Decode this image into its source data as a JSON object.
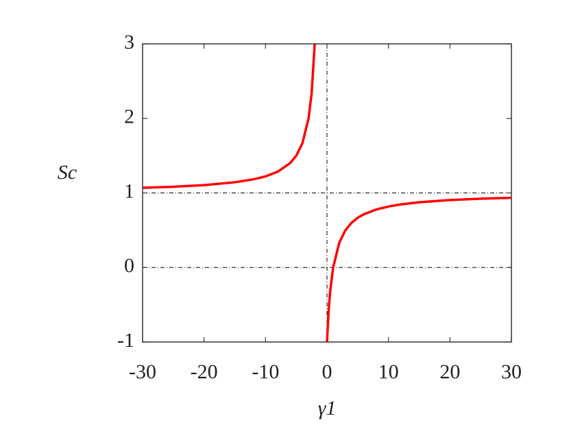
{
  "chart_data": {
    "type": "line",
    "xlabel": "γ1",
    "ylabel": "Sc",
    "x": [
      -30,
      -25,
      -20,
      -15,
      -12,
      -10,
      -8,
      -6,
      -5,
      -4,
      -3,
      -2.5,
      -2,
      -1,
      0,
      0.25,
      0.5,
      1,
      2,
      3,
      4,
      5,
      6,
      8,
      10,
      12,
      15,
      20,
      25,
      30
    ],
    "series": [
      {
        "color": "#ff0000",
        "values": [
          1.069,
          1.083,
          1.105,
          1.143,
          1.182,
          1.222,
          1.286,
          1.4,
          1.5,
          1.667,
          2,
          2.333,
          3,
          null,
          -1,
          -0.6,
          -0.333,
          0,
          0.333,
          0.5,
          0.6,
          0.667,
          0.714,
          0.778,
          0.818,
          0.846,
          0.875,
          0.905,
          0.923,
          0.935
        ]
      }
    ],
    "xlim": [
      -30,
      30
    ],
    "ylim": [
      -1,
      3
    ],
    "xticks": [
      -30,
      -20,
      -10,
      0,
      10,
      20,
      30
    ],
    "yticks": [
      -1,
      0,
      1,
      2,
      3
    ],
    "reference_lines": {
      "x": [
        0
      ],
      "y": [
        0,
        1
      ]
    }
  }
}
